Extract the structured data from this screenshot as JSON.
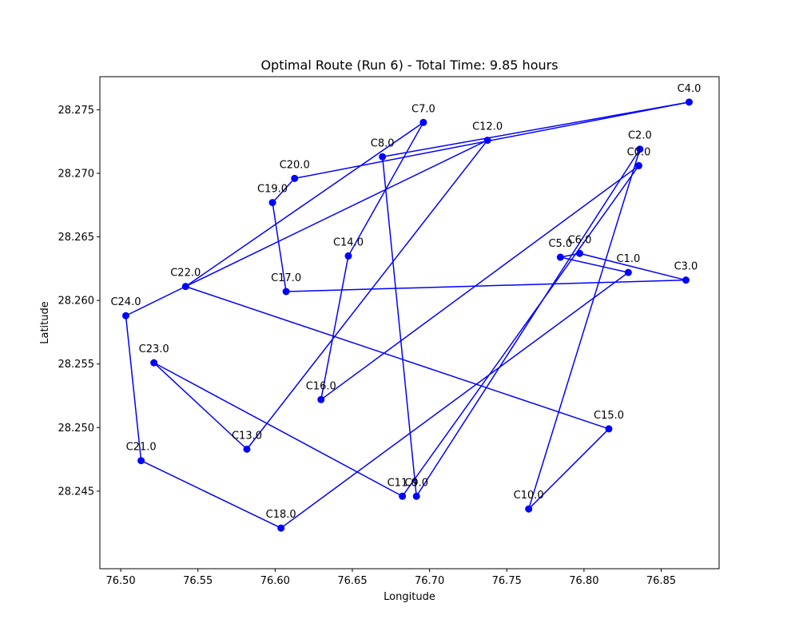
{
  "chart_data": {
    "type": "line",
    "title": "Optimal Route (Run 6) - Total Time: 9.85 hours",
    "xlabel": "Longitude",
    "ylabel": "Latitude",
    "xlim": [
      76.4865,
      76.8875
    ],
    "ylim": [
      28.2389,
      28.2776
    ],
    "xticks": [
      76.5,
      76.55,
      76.6,
      76.65,
      76.7,
      76.75,
      76.8,
      76.85
    ],
    "xtick_labels": [
      "76.50",
      "76.55",
      "76.60",
      "76.65",
      "76.70",
      "76.75",
      "76.80",
      "76.85"
    ],
    "yticks": [
      28.245,
      28.25,
      28.255,
      28.26,
      28.265,
      28.27,
      28.275
    ],
    "ytick_labels": [
      "28.245",
      "28.250",
      "28.255",
      "28.260",
      "28.265",
      "28.270",
      "28.275"
    ],
    "grid": false,
    "series_color": "#0000ff",
    "points": [
      {
        "label": "C0.0",
        "x": 76.8355,
        "y": 28.2706
      },
      {
        "label": "C1.0",
        "x": 76.8287,
        "y": 28.2622
      },
      {
        "label": "C2.0",
        "x": 76.8362,
        "y": 28.2719
      },
      {
        "label": "C3.0",
        "x": 76.866,
        "y": 28.2616
      },
      {
        "label": "C4.0",
        "x": 76.8681,
        "y": 28.2756
      },
      {
        "label": "C5.0",
        "x": 76.7847,
        "y": 28.2634
      },
      {
        "label": "C6.0",
        "x": 76.7972,
        "y": 28.2637
      },
      {
        "label": "C7.0",
        "x": 76.696,
        "y": 28.274
      },
      {
        "label": "C8.0",
        "x": 76.6695,
        "y": 28.2713
      },
      {
        "label": "C9.0",
        "x": 76.6915,
        "y": 28.2446
      },
      {
        "label": "C10.0",
        "x": 76.7642,
        "y": 28.2436
      },
      {
        "label": "C11.0",
        "x": 76.6824,
        "y": 28.2446
      },
      {
        "label": "C12.0",
        "x": 76.7375,
        "y": 28.2726
      },
      {
        "label": "C13.0",
        "x": 76.5817,
        "y": 28.2483
      },
      {
        "label": "C14.0",
        "x": 76.6474,
        "y": 28.2635
      },
      {
        "label": "C15.0",
        "x": 76.8161,
        "y": 28.2499
      },
      {
        "label": "C16.0",
        "x": 76.6297,
        "y": 28.2522
      },
      {
        "label": "C17.0",
        "x": 76.6071,
        "y": 28.2607
      },
      {
        "label": "C18.0",
        "x": 76.6038,
        "y": 28.2421
      },
      {
        "label": "C19.0",
        "x": 76.5983,
        "y": 28.2677
      },
      {
        "label": "C20.0",
        "x": 76.6126,
        "y": 28.2696
      },
      {
        "label": "C21.0",
        "x": 76.5132,
        "y": 28.2474
      },
      {
        "label": "C22.0",
        "x": 76.542,
        "y": 28.2611
      },
      {
        "label": "C23.0",
        "x": 76.5215,
        "y": 28.2551
      },
      {
        "label": "C24.0",
        "x": 76.5033,
        "y": 28.2588
      }
    ],
    "route": [
      "C0.0",
      "C16.0",
      "C14.0",
      "C7.0",
      "C22.0",
      "C24.0",
      "C21.0",
      "C18.0",
      "C1.0",
      "C5.0",
      "C6.0",
      "C3.0",
      "C17.0",
      "C19.0",
      "C20.0",
      "C4.0",
      "C8.0",
      "C9.0",
      "C2.0",
      "C10.0",
      "C15.0",
      "C22.0",
      "C12.0",
      "C13.0",
      "C23.0",
      "C11.0",
      "C0.0"
    ]
  }
}
